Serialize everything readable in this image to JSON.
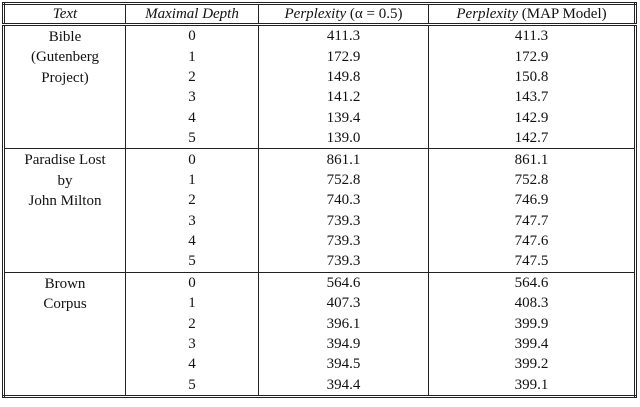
{
  "table": {
    "header": [
      {
        "italic": "Text"
      },
      {
        "italic": "Maximal Depth"
      },
      {
        "italic": "Perplexity",
        "plain": "(α = 0.5)"
      },
      {
        "italic": "Perplexity",
        "plain": "(MAP Model)"
      }
    ],
    "groups": [
      {
        "text": [
          "Bible",
          "(Gutenberg",
          "Project)"
        ],
        "rows": [
          [
            "0",
            "411.3",
            "411.3"
          ],
          [
            "1",
            "172.9",
            "172.9"
          ],
          [
            "2",
            "149.8",
            "150.8"
          ],
          [
            "3",
            "141.2",
            "143.7"
          ],
          [
            "4",
            "139.4",
            "142.9"
          ],
          [
            "5",
            "139.0",
            "142.7"
          ]
        ]
      },
      {
        "text": [
          "Paradise Lost",
          "by",
          "John Milton"
        ],
        "rows": [
          [
            "0",
            "861.1",
            "861.1"
          ],
          [
            "1",
            "752.8",
            "752.8"
          ],
          [
            "2",
            "740.3",
            "746.9"
          ],
          [
            "3",
            "739.3",
            "747.7"
          ],
          [
            "4",
            "739.3",
            "747.6"
          ],
          [
            "5",
            "739.3",
            "747.5"
          ]
        ]
      },
      {
        "text": [
          "Brown",
          "Corpus"
        ],
        "rows": [
          [
            "0",
            "564.6",
            "564.6"
          ],
          [
            "1",
            "407.3",
            "408.3"
          ],
          [
            "2",
            "396.1",
            "399.9"
          ],
          [
            "3",
            "394.9",
            "399.4"
          ],
          [
            "4",
            "394.5",
            "399.2"
          ],
          [
            "5",
            "394.4",
            "399.1"
          ]
        ]
      }
    ]
  }
}
